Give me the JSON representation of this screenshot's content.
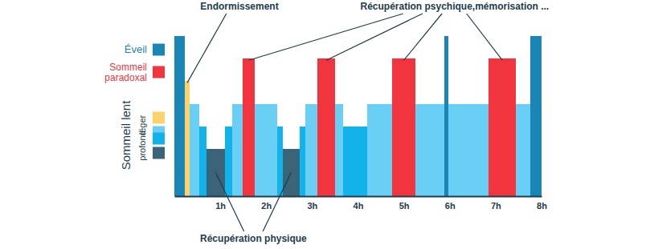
{
  "chart_data": {
    "type": "bar",
    "group_label": "Sommeil lent",
    "xlim": [
      0,
      8
    ],
    "xticks": [
      {
        "value": 1,
        "label": "1h"
      },
      {
        "value": 2,
        "label": "2h"
      },
      {
        "value": 3,
        "label": "3h"
      },
      {
        "value": 4,
        "label": "4h"
      },
      {
        "value": 5,
        "label": "5h"
      },
      {
        "value": 6,
        "label": "6h"
      },
      {
        "value": 7,
        "label": "7h"
      },
      {
        "value": 8,
        "label": "8h"
      }
    ],
    "series": [
      {
        "name": "Éveil",
        "color": "#1a86b5",
        "values": [
          [
            0,
            0.23
          ],
          [
            5.88,
            5.97
          ],
          [
            7.76,
            8
          ]
        ]
      },
      {
        "name": "Sommeil paradoxal",
        "color": "#f2343f",
        "annotation": "Récupération psychique,mémorisation ...",
        "values": [
          [
            1.49,
            1.75
          ],
          [
            3.12,
            3.5
          ],
          [
            4.75,
            5.25
          ],
          [
            6.85,
            7.44
          ]
        ]
      },
      {
        "name": "léger",
        "color": "#fcd36b",
        "annotation": "Endormissement",
        "values": [
          [
            0.23,
            0.33
          ]
        ]
      },
      {
        "name": "léger",
        "color": "#6acff5",
        "values": [
          [
            0.33,
            0.54
          ],
          [
            1.26,
            1.49
          ],
          [
            1.75,
            2.24
          ],
          [
            2.85,
            3.12
          ],
          [
            3.5,
            3.68
          ],
          [
            4.2,
            4.75
          ],
          [
            5.25,
            5.88
          ],
          [
            5.97,
            6.85
          ],
          [
            7.44,
            7.76
          ]
        ]
      },
      {
        "name": "profond",
        "color": "#12b3ea",
        "values": [
          [
            0.54,
            0.7
          ],
          [
            1.1,
            1.26
          ],
          [
            2.24,
            2.36
          ],
          [
            2.73,
            2.85
          ],
          [
            3.68,
            4.2
          ]
        ]
      },
      {
        "name": "profond",
        "color": "#3b6479",
        "annotation": "Récupération physique",
        "values": [
          [
            0.7,
            1.1
          ],
          [
            2.36,
            2.73
          ]
        ]
      }
    ]
  }
}
